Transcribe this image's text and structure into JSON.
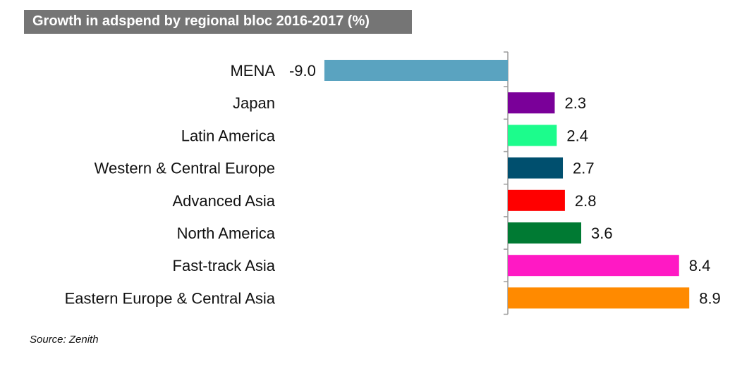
{
  "header": {
    "title": "Growth in adspend by regional bloc 2016-2017 (%)",
    "banner_color": "#757575"
  },
  "footer": {
    "source": "Source: Zenith"
  },
  "chart_data": {
    "type": "bar",
    "orientation": "horizontal",
    "title": "Growth in adspend by regional bloc 2016-2017 (%)",
    "xlabel": "",
    "ylabel": "",
    "xlim": [
      -9.0,
      8.9
    ],
    "grid": false,
    "legend": "none",
    "categories": [
      "MENA",
      "Japan",
      "Latin America",
      "Western & Central Europe",
      "Advanced Asia",
      "North America",
      "Fast-track Asia",
      "Eastern Europe & Central Asia"
    ],
    "values": [
      -9.0,
      2.3,
      2.4,
      2.7,
      2.8,
      3.6,
      8.4,
      8.9
    ],
    "value_labels": [
      "-9.0",
      "2.3",
      "2.4",
      "2.7",
      "2.8",
      "3.6",
      "8.4",
      "8.9"
    ],
    "colors": [
      "#5aa3c0",
      "#7a0099",
      "#1cfc8c",
      "#004f6e",
      "#ff0000",
      "#007a33",
      "#ff19c4",
      "#ff8a00"
    ]
  }
}
